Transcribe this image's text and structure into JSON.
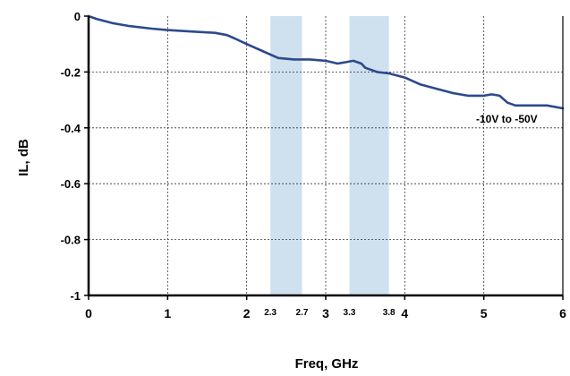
{
  "chart_data": {
    "type": "line",
    "xlabel": "Freq, GHz",
    "ylabel": "IL, dB",
    "xlim": [
      0,
      6
    ],
    "ylim": [
      -1,
      0
    ],
    "x_ticks": [
      "0",
      "1",
      "2",
      "3",
      "4",
      "5",
      "6"
    ],
    "y_ticks": [
      "0",
      "-0.2",
      "-0.4",
      "-0.6",
      "-0.8",
      "-1"
    ],
    "band_ticks": [
      "2.3",
      "2.7",
      "3.3",
      "3.8"
    ],
    "bands": [
      {
        "from": 2.3,
        "to": 2.7
      },
      {
        "from": 3.3,
        "to": 3.8
      }
    ],
    "band_color": "#cfe1ef",
    "grid": true,
    "series": [
      {
        "name": "-10V to -50V",
        "color": "#2c4a8c",
        "x": [
          0,
          0.1,
          0.3,
          0.5,
          0.8,
          1.0,
          1.3,
          1.6,
          1.75,
          1.85,
          2.0,
          2.2,
          2.4,
          2.6,
          2.8,
          3.0,
          3.15,
          3.25,
          3.35,
          3.45,
          3.5,
          3.65,
          3.8,
          4.0,
          4.2,
          4.4,
          4.6,
          4.8,
          5.0,
          5.1,
          5.2,
          5.3,
          5.4,
          5.6,
          5.8,
          6.0
        ],
        "y": [
          0,
          -0.01,
          -0.025,
          -0.035,
          -0.045,
          -0.05,
          -0.055,
          -0.06,
          -0.068,
          -0.08,
          -0.1,
          -0.125,
          -0.15,
          -0.155,
          -0.155,
          -0.16,
          -0.17,
          -0.165,
          -0.16,
          -0.17,
          -0.185,
          -0.2,
          -0.205,
          -0.22,
          -0.245,
          -0.26,
          -0.275,
          -0.285,
          -0.285,
          -0.28,
          -0.285,
          -0.31,
          -0.32,
          -0.32,
          -0.32,
          -0.33
        ]
      }
    ]
  }
}
